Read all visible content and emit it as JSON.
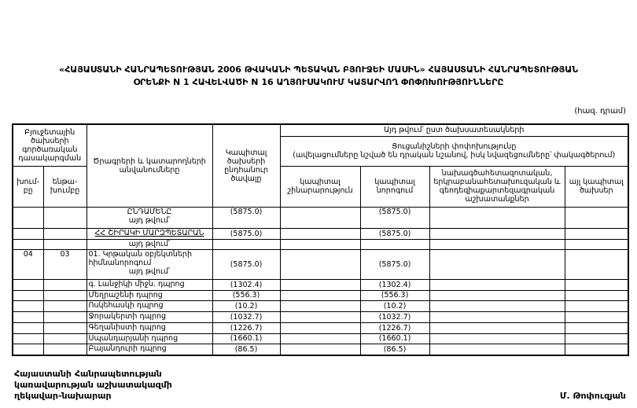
{
  "title": {
    "line1": "«ՀԱՅԱՍՏԱՆԻ ՀԱՆՐԱՊԵՏՈՒԹՅԱՆ 2006 ԹՎԱԿԱՆԻ ՊԵՏԱԿԱՆ ԲՅՈՒՋԵԻ ՄԱՍԻՆ» ՀԱՅԱՍՏԱՆԻ ՀԱՆՐԱՊԵՏՈՒԹՅԱՆ",
    "line2": "ՕՐԵՆՔԻ N 1 ՀԱՎԵԼՎԱԾԻ N 16 ԱՂՅՈՒՍԱԿՈՒՄ ԿԱՏԱՐՎՈՂ ՓՈՓՈԽՈՒԹՅՈՒՆՆԵՐԸ"
  },
  "units_note": "(հազ. դրամ)",
  "table": {
    "header": {
      "functional_classification": "Բյուջետային ծախսերի գործառական դասակարգման",
      "group": "խում-բը",
      "subgroup": "ենթա-խումբը",
      "program_names": "Ծրագրերի և կատարողների անվանումները",
      "capital_total": "Կապիտալ ծախսերի ընդհանուր ծավալը",
      "by_expense_type": "Այդ թվում՝ ըստ ծախսատեսակների",
      "change_note_line1": "Ցուցանիշների փոփոխությունը",
      "change_note_line2": "(ավելացումները նշված են դրական նշանով, իսկ նվազեցումները՝ փակագծերում)",
      "capital_construction": "կապիտալ շինարարություն",
      "capital_repair": "կապիտալ նորոգում",
      "design_research": "նախագծահետազոտական, երկրաբանահետախուզական և գեոդեզիաքարտեզագրական աշխատանքներ",
      "other_capital": "այլ կապիտալ ծախսեր"
    },
    "rows": [
      {
        "group": "",
        "subgroup": "",
        "lines": [
          {
            "text": "ԸՆԴԱՄԵՆԸ",
            "align": "center",
            "underline": false
          },
          {
            "text": "այդ թվում՝",
            "align": "center",
            "underline": false
          }
        ],
        "values": {
          "total": "(5875.0)",
          "construction": "",
          "repair": "(5875.0)",
          "design": "",
          "other": ""
        }
      },
      {
        "group": "",
        "subgroup": "",
        "lines": [
          {
            "text": "ՀՀ ՇԻՐԱԿԻ ՄԱՐԶՊԵՏԱՐԱՆ",
            "align": "center",
            "underline": true
          }
        ],
        "values": {
          "total": "(5875.0)",
          "construction": "",
          "repair": "(5875.0)",
          "design": "",
          "other": ""
        }
      },
      {
        "group": "",
        "subgroup": "",
        "lines": [
          {
            "text": "այդ թվում՝",
            "align": "center",
            "underline": false
          }
        ],
        "values": {
          "total": "",
          "construction": "",
          "repair": "",
          "design": "",
          "other": ""
        }
      },
      {
        "group": "04",
        "subgroup": "03",
        "lines": [
          {
            "text": "01. Կրթական օբյեկտների հիմնանորոգում",
            "align": "left",
            "underline": false
          },
          {
            "text": "այդ թվում՝",
            "align": "center",
            "underline": false
          }
        ],
        "values": {
          "total": "(5875.0)",
          "construction": "",
          "repair": "(5875.0)",
          "design": "",
          "other": ""
        }
      },
      {
        "group": "",
        "subgroup": "",
        "lines": [
          {
            "text": "գ. Լանջիկի միջն. դպրոց",
            "align": "left",
            "underline": false
          }
        ],
        "values": {
          "total": "(1302.4)",
          "construction": "",
          "repair": "(1302.4)",
          "design": "",
          "other": ""
        }
      },
      {
        "group": "",
        "subgroup": "",
        "lines": [
          {
            "text": "Մեղրաշենի դպրոց",
            "align": "left",
            "underline": false
          }
        ],
        "values": {
          "total": "(556.3)",
          "construction": "",
          "repair": "(556.3)",
          "design": "",
          "other": ""
        }
      },
      {
        "group": "",
        "subgroup": "",
        "lines": [
          {
            "text": "Ոսկեհասկի դպրոց",
            "align": "left",
            "underline": false
          }
        ],
        "values": {
          "total": "(10.2)",
          "construction": "",
          "repair": "(10.2)",
          "design": "",
          "other": ""
        }
      },
      {
        "group": "",
        "subgroup": "",
        "lines": [
          {
            "text": "Ջորակերտի դպրոց",
            "align": "left",
            "underline": false
          }
        ],
        "values": {
          "total": "(1032.7)",
          "construction": "",
          "repair": "(1032.7)",
          "design": "",
          "other": ""
        }
      },
      {
        "group": "",
        "subgroup": "",
        "lines": [
          {
            "text": "Գեղանիստի դպրոց",
            "align": "left",
            "underline": false
          }
        ],
        "values": {
          "total": "(1226.7)",
          "construction": "",
          "repair": "(1226.7)",
          "design": "",
          "other": ""
        }
      },
      {
        "group": "",
        "subgroup": "",
        "lines": [
          {
            "text": "Սպանդարյանի դպրոց",
            "align": "left",
            "underline": false
          }
        ],
        "values": {
          "total": "(1660.1)",
          "construction": "",
          "repair": "(1660.1)",
          "design": "",
          "other": ""
        }
      },
      {
        "group": "",
        "subgroup": "",
        "lines": [
          {
            "text": "Բայանդուրի դպրոց",
            "align": "left",
            "underline": false
          }
        ],
        "values": {
          "total": "(86.5)",
          "construction": "",
          "repair": "(86.5)",
          "design": "",
          "other": ""
        }
      }
    ]
  },
  "signature": {
    "line1": "Հայաստանի Հանրապետության",
    "line2": "կառավարության աշխատակազմի",
    "line3": "ղեկավար-նախարար",
    "name": "Մ. Թոփուզյան"
  }
}
